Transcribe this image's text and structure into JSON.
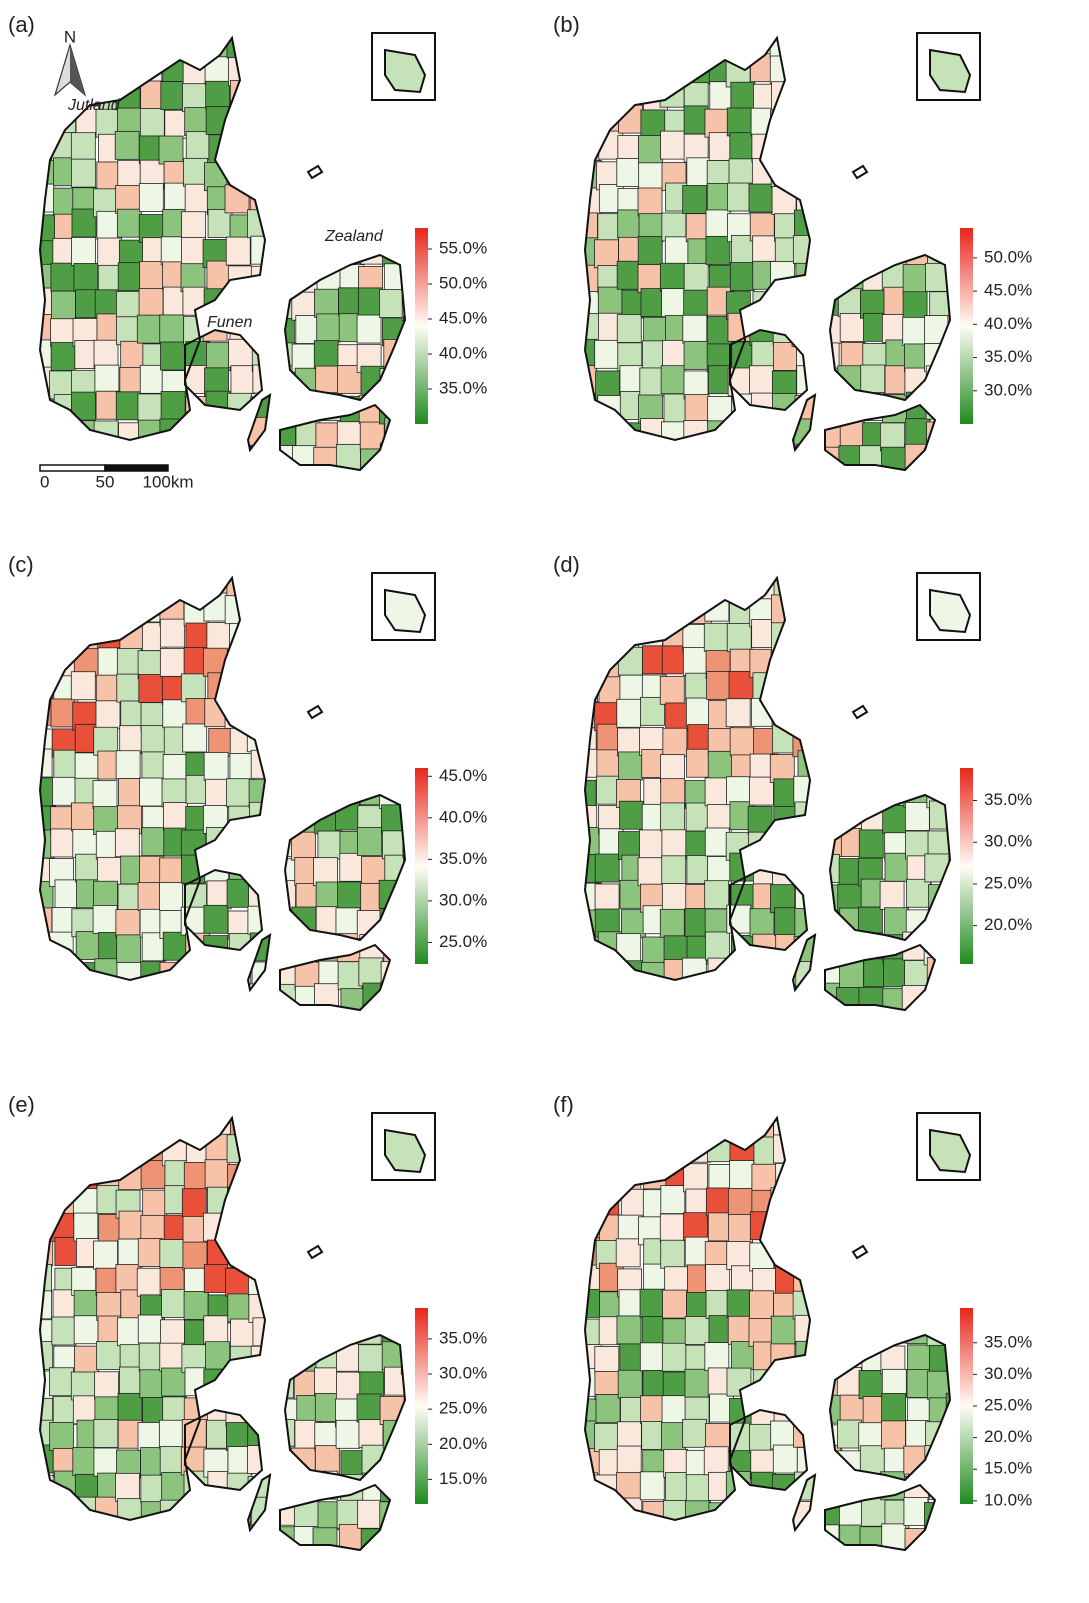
{
  "panels": [
    {
      "label": "(a)",
      "colorbar": {
        "range": [
          30,
          58
        ],
        "ticks": [
          {
            "value": 55,
            "label": "55.0%"
          },
          {
            "value": 50,
            "label": "50.0%"
          },
          {
            "value": 45,
            "label": "45.0%"
          },
          {
            "value": 40,
            "label": "40.0%"
          },
          {
            "value": 35,
            "label": "35.0%"
          }
        ]
      }
    },
    {
      "label": "(b)",
      "colorbar": {
        "range": [
          25,
          54.5
        ],
        "ticks": [
          {
            "value": 50,
            "label": "50.0%"
          },
          {
            "value": 45,
            "label": "45.0%"
          },
          {
            "value": 40,
            "label": "40.0%"
          },
          {
            "value": 35,
            "label": "35.0%"
          },
          {
            "value": 30,
            "label": "30.0%"
          }
        ]
      }
    },
    {
      "label": "(c)",
      "colorbar": {
        "range": [
          22.4,
          46
        ],
        "ticks": [
          {
            "value": 45,
            "label": "45.0%"
          },
          {
            "value": 40,
            "label": "40.0%"
          },
          {
            "value": 35,
            "label": "35.0%"
          },
          {
            "value": 30,
            "label": "30.0%"
          },
          {
            "value": 25,
            "label": "25.0%"
          }
        ]
      }
    },
    {
      "label": "(d)",
      "colorbar": {
        "range": [
          15.4,
          38.9
        ],
        "ticks": [
          {
            "value": 35,
            "label": "35.0%"
          },
          {
            "value": 30,
            "label": "30.0%"
          },
          {
            "value": 25,
            "label": "25.0%"
          },
          {
            "value": 20,
            "label": "20.0%"
          }
        ]
      }
    },
    {
      "label": "(e)",
      "colorbar": {
        "range": [
          11.5,
          39.4
        ],
        "ticks": [
          {
            "value": 35,
            "label": "35.0%"
          },
          {
            "value": 30,
            "label": "30.0%"
          },
          {
            "value": 25,
            "label": "25.0%"
          },
          {
            "value": 20,
            "label": "20.0%"
          },
          {
            "value": 15,
            "label": "15.0%"
          }
        ]
      }
    },
    {
      "label": "(f)",
      "colorbar": {
        "range": [
          9.5,
          40.5
        ],
        "ticks": [
          {
            "value": 35,
            "label": "35.0%"
          },
          {
            "value": 30,
            "label": "30.0%"
          },
          {
            "value": 25,
            "label": "25.0%"
          },
          {
            "value": 20,
            "label": "20.0%"
          },
          {
            "value": 15,
            "label": "15.0%"
          },
          {
            "value": 10,
            "label": "10.0%"
          }
        ]
      }
    }
  ],
  "annotations": {
    "north": "N",
    "jutland": "Jutland",
    "zealand": "Zealand",
    "funen": "Funen"
  },
  "scale_bar": {
    "labels": [
      "0",
      "50",
      "100km"
    ]
  }
}
